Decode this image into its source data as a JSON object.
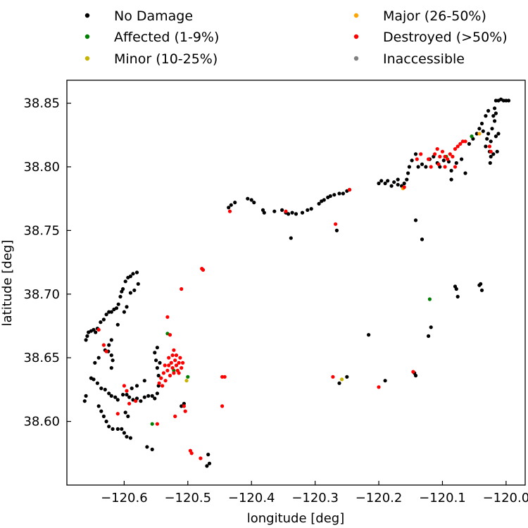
{
  "chart_data": {
    "type": "scatter",
    "xlabel": "longitude [deg]",
    "ylabel": "latitude [deg]",
    "xlim": [
      -120.69,
      -119.97
    ],
    "ylim": [
      38.55,
      38.868
    ],
    "xticks": [
      -120.6,
      -120.5,
      -120.4,
      -120.3,
      -120.2,
      -120.1,
      -120.0
    ],
    "xtick_labels": [
      "−120.6",
      "−120.5",
      "−120.4",
      "−120.3",
      "−120.2",
      "−120.1",
      "−120.0"
    ],
    "yticks": [
      38.6,
      38.65,
      38.7,
      38.75,
      38.8,
      38.85
    ],
    "ytick_labels": [
      "38.60",
      "38.65",
      "38.70",
      "38.75",
      "38.80",
      "38.85"
    ],
    "grid": false,
    "legend_position": "top, outside plot, two columns",
    "series": [
      {
        "name": "No Damage",
        "color": "#000000",
        "points": [
          [
            -120.66,
            38.664
          ],
          [
            -120.658,
            38.667
          ],
          [
            -120.656,
            38.67
          ],
          [
            -120.652,
            38.671
          ],
          [
            -120.648,
            38.672
          ],
          [
            -120.645,
            38.67
          ],
          [
            -120.642,
            38.673
          ],
          [
            -120.637,
            38.678
          ],
          [
            -120.632,
            38.68
          ],
          [
            -120.628,
            38.684
          ],
          [
            -120.624,
            38.686
          ],
          [
            -120.62,
            38.686
          ],
          [
            -120.616,
            38.688
          ],
          [
            -120.612,
            38.689
          ],
          [
            -120.609,
            38.692
          ],
          [
            -120.606,
            38.698
          ],
          [
            -120.604,
            38.702
          ],
          [
            -120.602,
            38.704
          ],
          [
            -120.598,
            38.71
          ],
          [
            -120.594,
            38.713
          ],
          [
            -120.59,
            38.714
          ],
          [
            -120.586,
            38.716
          ],
          [
            -120.58,
            38.717
          ],
          [
            -120.578,
            38.708
          ],
          [
            -120.584,
            38.703
          ],
          [
            -120.59,
            38.701
          ],
          [
            -120.596,
            38.69
          ],
          [
            -120.6,
            38.686
          ],
          [
            -120.61,
            38.676
          ],
          [
            -120.62,
            38.664
          ],
          [
            -120.624,
            38.66
          ],
          [
            -120.63,
            38.656
          ],
          [
            -120.64,
            38.65
          ],
          [
            -120.646,
            38.646
          ],
          [
            -120.625,
            38.655
          ],
          [
            -120.62,
            38.652
          ],
          [
            -120.652,
            38.634
          ],
          [
            -120.648,
            38.633
          ],
          [
            -120.642,
            38.63
          ],
          [
            -120.636,
            38.626
          ],
          [
            -120.63,
            38.625
          ],
          [
            -120.624,
            38.622
          ],
          [
            -120.62,
            38.62
          ],
          [
            -120.614,
            38.619
          ],
          [
            -120.61,
            38.617
          ],
          [
            -120.602,
            38.621
          ],
          [
            -120.596,
            38.621
          ],
          [
            -120.592,
            38.619
          ],
          [
            -120.586,
            38.617
          ],
          [
            -120.58,
            38.618
          ],
          [
            -120.574,
            38.616
          ],
          [
            -120.568,
            38.619
          ],
          [
            -120.562,
            38.62
          ],
          [
            -120.556,
            38.62
          ],
          [
            -120.552,
            38.618
          ],
          [
            -120.548,
            38.622
          ],
          [
            -120.546,
            38.628
          ],
          [
            -120.546,
            38.636
          ],
          [
            -120.548,
            38.642
          ],
          [
            -120.55,
            38.648
          ],
          [
            -120.552,
            38.654
          ],
          [
            -120.548,
            38.658
          ],
          [
            -120.544,
            38.646
          ],
          [
            -120.66,
            38.62
          ],
          [
            -120.662,
            38.616
          ],
          [
            -120.64,
            38.612
          ],
          [
            -120.636,
            38.608
          ],
          [
            -120.632,
            38.604
          ],
          [
            -120.628,
            38.6
          ],
          [
            -120.624,
            38.596
          ],
          [
            -120.618,
            38.594
          ],
          [
            -120.61,
            38.594
          ],
          [
            -120.604,
            38.594
          ],
          [
            -120.6,
            38.591
          ],
          [
            -120.596,
            38.588
          ],
          [
            -120.59,
            38.587
          ],
          [
            -120.598,
            38.607
          ],
          [
            -120.594,
            38.604
          ],
          [
            -120.62,
            38.642
          ],
          [
            -120.618,
            38.648
          ],
          [
            -120.564,
            38.58
          ],
          [
            -120.556,
            38.578
          ],
          [
            -120.51,
            38.612
          ],
          [
            -120.506,
            38.614
          ],
          [
            -120.468,
            38.574
          ],
          [
            -120.466,
            38.567
          ],
          [
            -120.47,
            38.565
          ],
          [
            -120.568,
            38.632
          ],
          [
            -120.58,
            38.628
          ],
          [
            -120.588,
            38.626
          ],
          [
            -120.436,
            38.768
          ],
          [
            -120.432,
            38.77
          ],
          [
            -120.426,
            38.772
          ],
          [
            -120.406,
            38.775
          ],
          [
            -120.4,
            38.774
          ],
          [
            -120.396,
            38.772
          ],
          [
            -120.382,
            38.766
          ],
          [
            -120.38,
            38.764
          ],
          [
            -120.364,
            38.765
          ],
          [
            -120.352,
            38.766
          ],
          [
            -120.346,
            38.764
          ],
          [
            -120.342,
            38.763
          ],
          [
            -120.336,
            38.764
          ],
          [
            -120.33,
            38.763
          ],
          [
            -120.32,
            38.764
          ],
          [
            -120.312,
            38.766
          ],
          [
            -120.306,
            38.767
          ],
          [
            -120.294,
            38.771
          ],
          [
            -120.29,
            38.773
          ],
          [
            -120.286,
            38.774
          ],
          [
            -120.28,
            38.776
          ],
          [
            -120.276,
            38.777
          ],
          [
            -120.27,
            38.778
          ],
          [
            -120.262,
            38.779
          ],
          [
            -120.256,
            38.779
          ],
          [
            -120.25,
            38.781
          ],
          [
            -120.246,
            38.782
          ],
          [
            -120.2,
            38.787
          ],
          [
            -120.196,
            38.789
          ],
          [
            -120.19,
            38.787
          ],
          [
            -120.186,
            38.789
          ],
          [
            -120.176,
            38.788
          ],
          [
            -120.17,
            38.786
          ],
          [
            -120.164,
            38.785
          ],
          [
            -120.16,
            38.787
          ],
          [
            -120.156,
            38.79
          ],
          [
            -120.154,
            38.795
          ],
          [
            -120.152,
            38.8
          ],
          [
            -120.148,
            38.805
          ],
          [
            -120.142,
            38.81
          ],
          [
            -120.138,
            38.8
          ],
          [
            -120.132,
            38.802
          ],
          [
            -120.126,
            38.8
          ],
          [
            -120.12,
            38.806
          ],
          [
            -120.114,
            38.808
          ],
          [
            -120.108,
            38.803
          ],
          [
            -120.104,
            38.8
          ],
          [
            -120.098,
            38.805
          ],
          [
            -120.09,
            38.804
          ],
          [
            -120.086,
            38.797
          ],
          [
            -120.078,
            38.803
          ],
          [
            -120.07,
            38.806
          ],
          [
            -120.064,
            38.795
          ],
          [
            -120.058,
            38.818
          ],
          [
            -120.052,
            38.822
          ],
          [
            -120.046,
            38.826
          ],
          [
            -120.042,
            38.83
          ],
          [
            -120.038,
            38.834
          ],
          [
            -120.036,
            38.828
          ],
          [
            -120.032,
            38.816
          ],
          [
            -120.03,
            38.822
          ],
          [
            -120.028,
            38.826
          ],
          [
            -120.026,
            38.812
          ],
          [
            -120.025,
            38.803
          ],
          [
            -120.024,
            38.82
          ],
          [
            -120.022,
            38.83
          ],
          [
            -120.02,
            38.84
          ],
          [
            -120.018,
            38.846
          ],
          [
            -120.016,
            38.852
          ],
          [
            -120.012,
            38.852
          ],
          [
            -120.008,
            38.853
          ],
          [
            -120.004,
            38.852
          ],
          [
            -120.0,
            38.852
          ],
          [
            -119.996,
            38.852
          ],
          [
            -120.02,
            38.81
          ],
          [
            -120.024,
            38.808
          ],
          [
            -120.018,
            38.836
          ],
          [
            -120.016,
            38.824
          ],
          [
            -120.014,
            38.812
          ],
          [
            -120.012,
            38.826
          ],
          [
            -120.016,
            38.842
          ],
          [
            -120.028,
            38.844
          ],
          [
            -120.032,
            38.84
          ],
          [
            -120.086,
            38.79
          ],
          [
            -120.18,
            38.785
          ],
          [
            -120.17,
            38.79
          ],
          [
            -120.142,
            38.758
          ],
          [
            -120.132,
            38.743
          ],
          [
            -120.338,
            38.744
          ],
          [
            -120.266,
            38.75
          ],
          [
            -120.216,
            38.668
          ],
          [
            -120.19,
            38.632
          ],
          [
            -120.262,
            38.63
          ],
          [
            -120.25,
            38.635
          ],
          [
            -120.142,
            38.636
          ],
          [
            -120.144,
            38.638
          ],
          [
            -120.122,
            38.667
          ],
          [
            -120.118,
            38.674
          ],
          [
            -120.08,
            38.706
          ],
          [
            -120.078,
            38.704
          ],
          [
            -120.076,
            38.698
          ],
          [
            -120.042,
            38.707
          ],
          [
            -120.04,
            38.708
          ],
          [
            -120.038,
            38.703
          ]
        ]
      },
      {
        "name": "Affected (1-9%)",
        "color": "#008000",
        "points": [
          [
            -120.12,
            38.696
          ],
          [
            -120.556,
            38.598
          ],
          [
            -120.532,
            38.669
          ],
          [
            -120.5,
            38.635
          ],
          [
            -120.522,
            38.64
          ],
          [
            -120.094,
            38.808
          ],
          [
            -120.054,
            38.824
          ]
        ]
      },
      {
        "name": "Minor (10-25%)",
        "color": "#c8b400",
        "points": [
          [
            -120.258,
            38.633
          ],
          [
            -120.502,
            38.632
          ]
        ]
      },
      {
        "name": "Major (26-50%)",
        "color": "#ffa500",
        "points": [
          [
            -120.162,
            38.783
          ],
          [
            -120.042,
            38.826
          ]
        ]
      },
      {
        "name": "Destroyed (>50%)",
        "color": "#ff0000",
        "points": [
          [
            -120.545,
            38.63
          ],
          [
            -120.542,
            38.634
          ],
          [
            -120.538,
            38.638
          ],
          [
            -120.535,
            38.632
          ],
          [
            -120.532,
            38.64
          ],
          [
            -120.53,
            38.644
          ],
          [
            -120.528,
            38.636
          ],
          [
            -120.526,
            38.646
          ],
          [
            -120.524,
            38.642
          ],
          [
            -120.522,
            38.638
          ],
          [
            -120.52,
            38.648
          ],
          [
            -120.518,
            38.644
          ],
          [
            -120.516,
            38.64
          ],
          [
            -120.514,
            38.646
          ],
          [
            -120.512,
            38.65
          ],
          [
            -120.51,
            38.642
          ],
          [
            -120.508,
            38.646
          ],
          [
            -120.536,
            38.644
          ],
          [
            -120.54,
            38.628
          ],
          [
            -120.53,
            38.65
          ],
          [
            -120.524,
            38.652
          ],
          [
            -120.518,
            38.652
          ],
          [
            -120.514,
            38.638
          ],
          [
            -120.532,
            38.682
          ],
          [
            -120.528,
            38.668
          ],
          [
            -120.522,
            38.656
          ],
          [
            -120.51,
            38.704
          ],
          [
            -120.478,
            38.72
          ],
          [
            -120.476,
            38.719
          ],
          [
            -120.506,
            38.612
          ],
          [
            -120.504,
            38.608
          ],
          [
            -120.52,
            38.604
          ],
          [
            -120.496,
            38.577
          ],
          [
            -120.494,
            38.575
          ],
          [
            -120.48,
            38.571
          ],
          [
            -120.446,
            38.635
          ],
          [
            -120.442,
            38.635
          ],
          [
            -120.446,
            38.612
          ],
          [
            -120.434,
            38.765
          ],
          [
            -120.346,
            38.765
          ],
          [
            -120.268,
            38.755
          ],
          [
            -120.272,
            38.635
          ],
          [
            -120.2,
            38.627
          ],
          [
            -120.146,
            38.639
          ],
          [
            -120.64,
            38.672
          ],
          [
            -120.632,
            38.66
          ],
          [
            -120.628,
            38.655
          ],
          [
            -120.6,
            38.628
          ],
          [
            -120.596,
            38.624
          ],
          [
            -120.592,
            38.614
          ],
          [
            -120.582,
            38.616
          ],
          [
            -120.61,
            38.606
          ],
          [
            -120.548,
            38.598
          ],
          [
            -120.246,
            38.782
          ],
          [
            -120.16,
            38.784
          ],
          [
            -120.14,
            38.806
          ],
          [
            -120.134,
            38.81
          ],
          [
            -120.122,
            38.806
          ],
          [
            -120.112,
            38.81
          ],
          [
            -120.108,
            38.814
          ],
          [
            -120.104,
            38.808
          ],
          [
            -120.1,
            38.812
          ],
          [
            -120.096,
            38.808
          ],
          [
            -120.092,
            38.806
          ],
          [
            -120.088,
            38.81
          ],
          [
            -120.084,
            38.808
          ],
          [
            -120.08,
            38.814
          ],
          [
            -120.076,
            38.816
          ],
          [
            -120.072,
            38.818
          ],
          [
            -120.068,
            38.82
          ],
          [
            -120.064,
            38.82
          ],
          [
            -120.106,
            38.802
          ],
          [
            -120.096,
            38.8
          ],
          [
            -120.08,
            38.8
          ],
          [
            -120.118,
            38.8
          ],
          [
            -120.026,
            38.816
          ],
          [
            -120.024,
            38.812
          ]
        ]
      },
      {
        "name": "Inaccessible",
        "color": "#808080",
        "points": []
      }
    ]
  }
}
